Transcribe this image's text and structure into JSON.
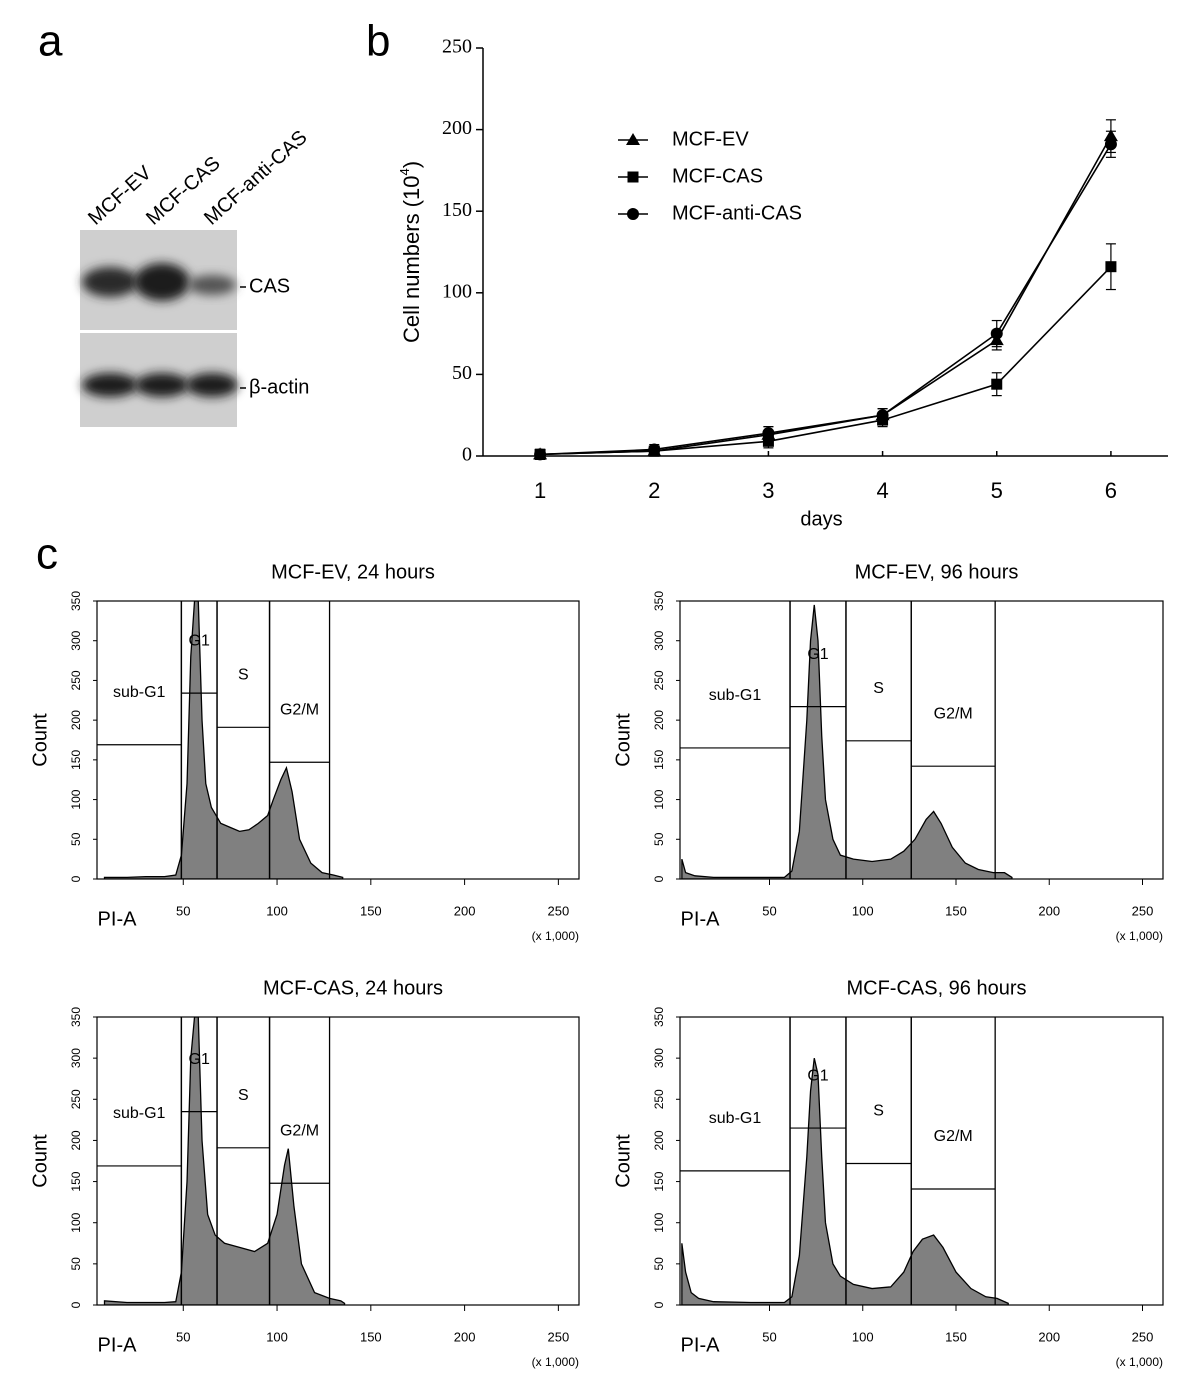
{
  "panel_labels": [
    "a",
    "b",
    "c"
  ],
  "blot": {
    "lanes": [
      "MCF-EV",
      "MCF-CAS",
      "MCF-anti-CAS"
    ],
    "bands": [
      "CAS",
      "β-actin"
    ]
  },
  "chart_data": [
    {
      "type": "line",
      "ylabel": [
        "Cell numbers (10",
        "4",
        ")"
      ],
      "xlabel": "days",
      "x": [
        1,
        2,
        3,
        4,
        5,
        6
      ],
      "xlim": [
        0.5,
        6.5
      ],
      "xticks": [
        1,
        2,
        3,
        4,
        5,
        6
      ],
      "ylim": [
        0,
        250
      ],
      "yticks": [
        0,
        50,
        100,
        150,
        200,
        250
      ],
      "series": [
        {
          "name": "MCF-EV",
          "color": "#000000",
          "marker": "triangle",
          "values": [
            1,
            3,
            13,
            25,
            71,
            196
          ],
          "errors": [
            3,
            3,
            5,
            4,
            6,
            10
          ]
        },
        {
          "name": "MCF-CAS",
          "color": "#000000",
          "marker": "square",
          "values": [
            1,
            3,
            9,
            22,
            44,
            116
          ],
          "errors": [
            3,
            3,
            4,
            4,
            7,
            14
          ]
        },
        {
          "name": "MCF-anti-CAS",
          "color": "#000000",
          "marker": "circle",
          "values": [
            1,
            4,
            14,
            25,
            75,
            191
          ],
          "errors": [
            3,
            3,
            4,
            4,
            8,
            8
          ]
        }
      ]
    },
    {
      "type": "area",
      "title": "MCF-EV, 24 hours",
      "ylabel": "Count",
      "xlabel": "PI-A",
      "xunit": "(x 1,000)",
      "xlim": [
        4,
        261
      ],
      "xticks": [
        50,
        100,
        150,
        200,
        250
      ],
      "ylim": [
        0,
        350
      ],
      "yticks": [
        0,
        50,
        100,
        150,
        200,
        250,
        300,
        350
      ],
      "color": "#808080",
      "gates": [
        {
          "label": "sub-G1",
          "range": [
            4,
            49
          ],
          "level": 169
        },
        {
          "label": "G1",
          "range": [
            49,
            68
          ],
          "level": 234
        },
        {
          "label": "S",
          "range": [
            68,
            96
          ],
          "level": 191
        },
        {
          "label": "G2/M",
          "range": [
            96,
            128
          ],
          "level": 147
        }
      ],
      "x": [
        8,
        20,
        30,
        40,
        46,
        49,
        52,
        54,
        56,
        58,
        60,
        62,
        65,
        70,
        75,
        80,
        85,
        90,
        95,
        98,
        102,
        105,
        108,
        112,
        118,
        124,
        130,
        135
      ],
      "values": [
        2,
        2,
        3,
        3,
        5,
        30,
        120,
        280,
        350,
        350,
        200,
        120,
        90,
        70,
        65,
        60,
        62,
        70,
        80,
        100,
        125,
        140,
        110,
        50,
        20,
        8,
        5,
        2
      ]
    },
    {
      "type": "area",
      "title": "MCF-EV, 96 hours",
      "ylabel": "Count",
      "xlabel": "PI-A",
      "xunit": "(x 1,000)",
      "xlim": [
        2,
        261
      ],
      "xticks": [
        50,
        100,
        150,
        200,
        250
      ],
      "ylim": [
        0,
        350
      ],
      "yticks": [
        0,
        50,
        100,
        150,
        200,
        250,
        300,
        350
      ],
      "color": "#808080",
      "gates": [
        {
          "label": "sub-G1",
          "range": [
            2,
            61
          ],
          "level": 165
        },
        {
          "label": "G1",
          "range": [
            61,
            91
          ],
          "level": 217
        },
        {
          "label": "S",
          "range": [
            91,
            126
          ],
          "level": 174
        },
        {
          "label": "G2/M",
          "range": [
            126,
            171
          ],
          "level": 142
        }
      ],
      "x": [
        3,
        5,
        10,
        20,
        40,
        58,
        62,
        66,
        70,
        72,
        74,
        76,
        78,
        80,
        84,
        88,
        95,
        105,
        115,
        122,
        128,
        134,
        138,
        142,
        148,
        155,
        162,
        170,
        176,
        180
      ],
      "values": [
        25,
        8,
        4,
        2,
        2,
        2,
        10,
        60,
        200,
        300,
        345,
        300,
        180,
        100,
        50,
        30,
        25,
        22,
        25,
        35,
        50,
        75,
        85,
        70,
        40,
        20,
        12,
        8,
        8,
        2
      ]
    },
    {
      "type": "area",
      "title": "MCF-CAS, 24 hours",
      "ylabel": "Count",
      "xlabel": "PI-A",
      "xunit": "(x 1,000)",
      "xlim": [
        4,
        261
      ],
      "xticks": [
        50,
        100,
        150,
        200,
        250
      ],
      "ylim": [
        0,
        350
      ],
      "yticks": [
        0,
        50,
        100,
        150,
        200,
        250,
        300,
        350
      ],
      "color": "#808080",
      "gates": [
        {
          "label": "sub-G1",
          "range": [
            4,
            49
          ],
          "level": 169
        },
        {
          "label": "G1",
          "range": [
            49,
            68
          ],
          "level": 235
        },
        {
          "label": "S",
          "range": [
            68,
            96
          ],
          "level": 191
        },
        {
          "label": "G2/M",
          "range": [
            96,
            128
          ],
          "level": 148
        }
      ],
      "x": [
        8,
        20,
        40,
        46,
        49,
        52,
        54,
        56,
        58,
        60,
        63,
        67,
        72,
        80,
        88,
        95,
        100,
        104,
        106,
        109,
        113,
        120,
        128,
        134,
        136
      ],
      "values": [
        5,
        3,
        3,
        4,
        40,
        150,
        300,
        350,
        350,
        200,
        110,
        85,
        75,
        70,
        65,
        75,
        110,
        170,
        190,
        120,
        50,
        15,
        8,
        5,
        2
      ]
    },
    {
      "type": "area",
      "title": "MCF-CAS, 96 hours",
      "ylabel": "Count",
      "xlabel": "PI-A",
      "xunit": "(x 1,000)",
      "xlim": [
        2,
        261
      ],
      "xticks": [
        50,
        100,
        150,
        200,
        250
      ],
      "ylim": [
        0,
        350
      ],
      "yticks": [
        0,
        50,
        100,
        150,
        200,
        250,
        300,
        350
      ],
      "color": "#808080",
      "gates": [
        {
          "label": "sub-G1",
          "range": [
            2,
            61
          ],
          "level": 163
        },
        {
          "label": "G1",
          "range": [
            61,
            91
          ],
          "level": 215
        },
        {
          "label": "S",
          "range": [
            91,
            126
          ],
          "level": 172
        },
        {
          "label": "G2/M",
          "range": [
            126,
            171
          ],
          "level": 141
        }
      ],
      "x": [
        3,
        5,
        8,
        12,
        20,
        40,
        58,
        62,
        66,
        70,
        72,
        74,
        76,
        78,
        80,
        84,
        88,
        95,
        105,
        115,
        122,
        127,
        132,
        138,
        143,
        150,
        158,
        166,
        172,
        178
      ],
      "values": [
        75,
        40,
        15,
        8,
        4,
        3,
        3,
        10,
        60,
        180,
        260,
        300,
        280,
        180,
        100,
        50,
        35,
        25,
        20,
        22,
        40,
        65,
        80,
        85,
        70,
        40,
        20,
        10,
        8,
        2
      ]
    }
  ]
}
